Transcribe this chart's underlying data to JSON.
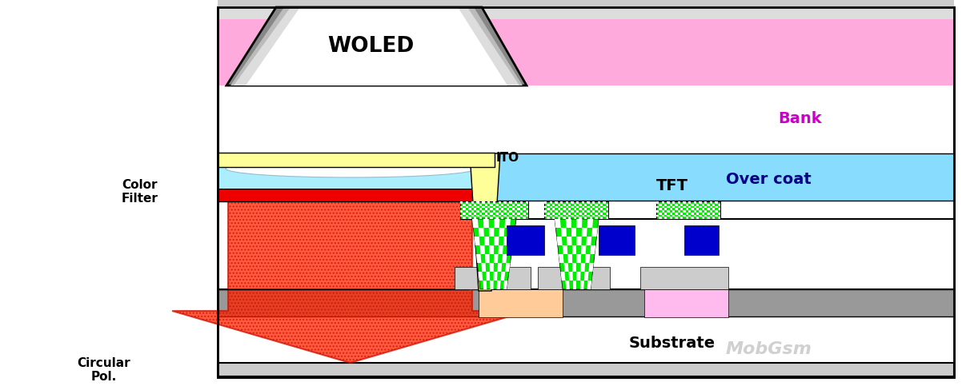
{
  "fig_width": 12.12,
  "fig_height": 4.89,
  "dpi": 100,
  "colors": {
    "pink_bank": "#ffaadd",
    "cyan_overcoat": "#88ddff",
    "yellow_ito": "#ffff99",
    "red_cf": "#ee0000",
    "gray_woled_outer": "#888888",
    "gray_woled_mid": "#aaaaaa",
    "gray_woled_inner": "#666666",
    "light_gray": "#cccccc",
    "mid_gray": "#aaaaaa",
    "dark_gray_substrate": "#999999",
    "green_tft": "#00ee00",
    "blue_cap": "#0000cc",
    "peach_gate": "#ffcc99",
    "lavender": "#ffbbee",
    "white": "#ffffff",
    "arrow_red": "#ff2200",
    "tft_bg": "#ffffff",
    "pale_cyan_oc_left": "#aaeeff",
    "border_black": "#000000"
  },
  "texts": {
    "woled": "WOLED",
    "bank": "Bank",
    "over_coat": "Over coat",
    "ito": "ITO",
    "tft": "TFT",
    "substrate": "Substrate",
    "color_filter": "Color\nFilter",
    "circular_pol": "Circular\nPol.",
    "watermark": "MobGsm"
  }
}
